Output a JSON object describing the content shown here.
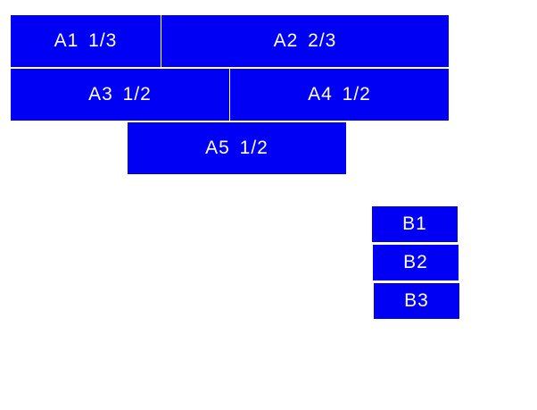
{
  "accent_color": "#0000f5",
  "group_a": [
    {
      "label": "A1 1/3"
    },
    {
      "label": "A2 2/3"
    },
    {
      "label": "A3 1/2"
    },
    {
      "label": "A4 1/2"
    },
    {
      "label": "A5 1/2"
    }
  ],
  "group_b": [
    {
      "label": "B1"
    },
    {
      "label": "B2"
    },
    {
      "label": "B3"
    }
  ]
}
